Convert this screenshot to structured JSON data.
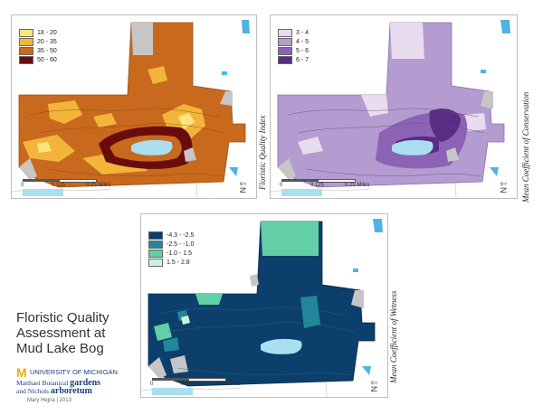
{
  "title": {
    "line1": "Floristic Quality",
    "line2": "Assessment at",
    "line3": "Mud Lake Bog"
  },
  "logo": {
    "m_letter": "M",
    "university": "UNIVERSITY OF MICHIGAN",
    "line2_prefix": "Matthaei Botanical ",
    "line2_big": "gardens",
    "line3_prefix": "and Nichols ",
    "line3_big": "arboretum"
  },
  "credit": "Mary Hejna | 2013",
  "scale": {
    "zero": "0",
    "mid": "0.125",
    "end": "0.25 Miles"
  },
  "north_label": "N",
  "maps": [
    {
      "id": "fqi",
      "side_title": "Floristic Quality Index",
      "legend": [
        {
          "label": "18 - 20",
          "color": "#fbe57f"
        },
        {
          "label": "20 - 35",
          "color": "#f2b53a"
        },
        {
          "label": "35 - 50",
          "color": "#c8691e"
        },
        {
          "label": "50 - 60",
          "color": "#6b0c0c"
        }
      ]
    },
    {
      "id": "mcc",
      "side_title": "Mean Coefficient of Conservation",
      "legend": [
        {
          "label": "3 - 4",
          "color": "#e7dcf0"
        },
        {
          "label": "4 - 5",
          "color": "#b49bd0"
        },
        {
          "label": "5 - 6",
          "color": "#8c63b4"
        },
        {
          "label": "6 - 7",
          "color": "#5b2c85"
        }
      ]
    },
    {
      "id": "mcw",
      "side_title": "Mean Coefficient of Wetness",
      "legend": [
        {
          "label": "-4.3 - -2.5",
          "color": "#0c3f6b"
        },
        {
          "label": "-2.5 - -1.0",
          "color": "#21889a"
        },
        {
          "label": "-1.0 - 1.5",
          "color": "#62cfa6"
        },
        {
          "label": "1.5 - 2.8",
          "color": "#c9f5df"
        }
      ]
    }
  ],
  "colors": {
    "water": "#a9dfef",
    "pond": "#4fb3e3",
    "gray": "#c6c6c6",
    "road": "#d8d8d8"
  }
}
